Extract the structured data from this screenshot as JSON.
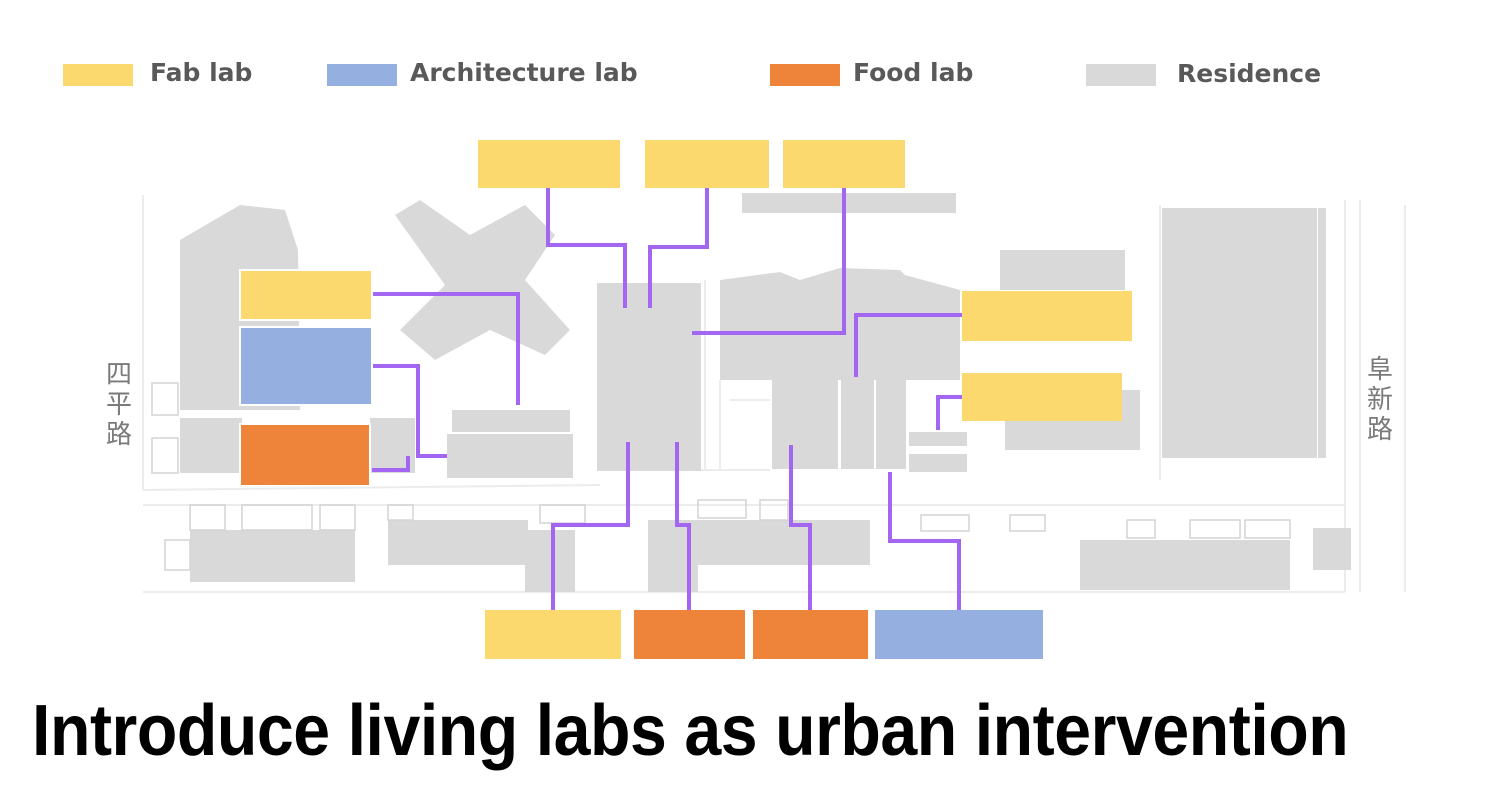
{
  "legend": {
    "fab": {
      "label": "Fab lab",
      "color": "#FCD96E"
    },
    "architecture": {
      "label": "Architecture lab",
      "color": "#94AFE0"
    },
    "food": {
      "label": "Food lab",
      "color": "#EE833A"
    },
    "residence": {
      "label": "Residence",
      "color": "#D9D9D9"
    }
  },
  "connector_color": "#A366F0",
  "roads": {
    "left": "四平路",
    "right": "阜新路"
  },
  "caption": "Introduce living labs as urban intervention"
}
